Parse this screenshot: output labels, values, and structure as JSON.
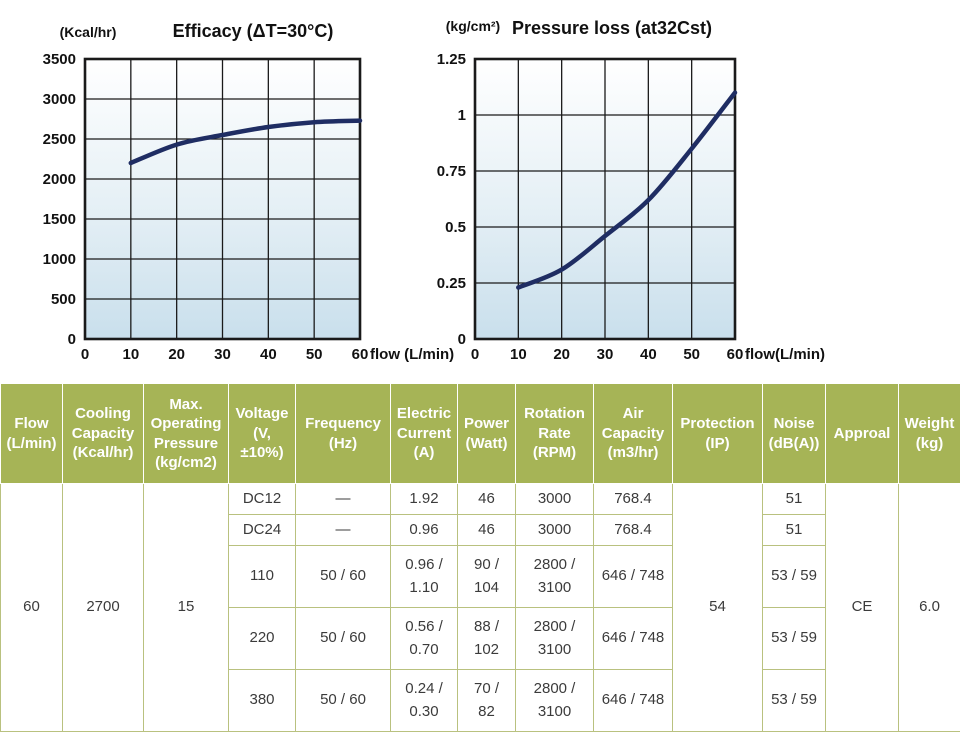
{
  "colors": {
    "header_bg": "#a6b456",
    "header_text": "#ffffff",
    "body_border": "#b9c17f",
    "curve": "#1f2d63",
    "grid_line": "#1a1a1a",
    "plot_gradient_top": "#ffffff",
    "plot_gradient_bottom": "#c9dfec"
  },
  "chart_data": [
    {
      "type": "line",
      "title": "Efficacy (ΔT=30°C)",
      "y_unit_label": "(Kcal/hr)",
      "x_label": "flow (L/min)",
      "xlim": [
        0,
        60
      ],
      "ylim": [
        0,
        3500
      ],
      "x_ticks": [
        0,
        10,
        20,
        30,
        40,
        50,
        60
      ],
      "y_ticks": [
        0,
        500,
        1000,
        1500,
        2000,
        2500,
        3000,
        3500
      ],
      "grid": true,
      "legend": false,
      "x": [
        10,
        20,
        30,
        40,
        50,
        60
      ],
      "y": [
        2200,
        2430,
        2550,
        2650,
        2710,
        2730
      ]
    },
    {
      "type": "line",
      "title": "Pressure loss (at32Cst)",
      "y_unit_label": "(kg/cm²)",
      "x_label": "flow(L/min)",
      "xlim": [
        0,
        60
      ],
      "ylim": [
        0,
        1.25
      ],
      "x_ticks": [
        0,
        10,
        20,
        30,
        40,
        50,
        60
      ],
      "y_ticks": [
        0,
        0.25,
        0.5,
        0.75,
        1,
        1.25
      ],
      "grid": true,
      "legend": false,
      "x": [
        10,
        20,
        30,
        40,
        50,
        60
      ],
      "y": [
        0.23,
        0.31,
        0.46,
        0.62,
        0.85,
        1.1
      ]
    }
  ],
  "table": {
    "headers": [
      "Flow\n(L/min)",
      "Cooling\nCapacity\n(Kcal/hr)",
      "Max.\nOperating\nPressure\n(kg/cm2)",
      "Voltage\n(V,\n±10%)",
      "Frequency\n(Hz)",
      "Electric\nCurrent\n(A)",
      "Power\n(Watt)",
      "Rotation\nRate\n(RPM)",
      "Air\nCapacity\n(m3/hr)",
      "Protection\n(IP)",
      "Noise\n(dB(A))",
      "Approal",
      "Weight\n(kg)"
    ],
    "merged": {
      "flow": "60",
      "cooling": "2700",
      "pressure": "15",
      "protection": "54",
      "approval": "CE",
      "weight": "6.0"
    },
    "rows": [
      {
        "voltage": "DC12",
        "frequency": "—",
        "current": "1.92",
        "power": "46",
        "rpm": "3000",
        "air": "768.4",
        "noise": "51"
      },
      {
        "voltage": "DC24",
        "frequency": "—",
        "current": "0.96",
        "power": "46",
        "rpm": "3000",
        "air": "768.4",
        "noise": "51"
      },
      {
        "voltage": "110",
        "frequency": "50 / 60",
        "current": "0.96 /\n1.10",
        "power": "90 /\n104",
        "rpm": "2800 /\n3100",
        "air": "646 / 748",
        "noise": "53 / 59"
      },
      {
        "voltage": "220",
        "frequency": "50 / 60",
        "current": "0.56 /\n0.70",
        "power": "88 /\n102",
        "rpm": "2800 /\n3100",
        "air": "646 / 748",
        "noise": "53 / 59"
      },
      {
        "voltage": "380",
        "frequency": "50 / 60",
        "current": "0.24 /\n0.30",
        "power": "70 /\n82",
        "rpm": "2800 /\n3100",
        "air": "646 / 748",
        "noise": "53 / 59"
      }
    ]
  }
}
